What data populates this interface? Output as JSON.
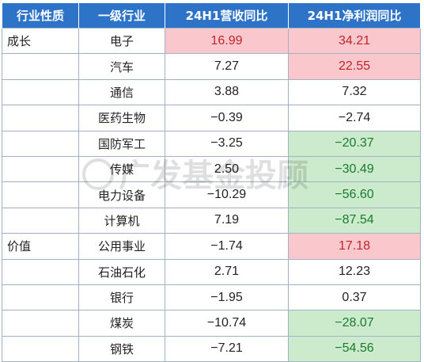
{
  "table": {
    "headers": [
      "行业性质",
      "一级行业",
      "24H1营收同比",
      "24H1净利润同比"
    ],
    "rows": [
      {
        "type": "成长",
        "industry": "电子",
        "revenue": "16.99",
        "profit": "34.21",
        "rev_hl": "pos",
        "prof_hl": "pos"
      },
      {
        "type": "",
        "industry": "汽车",
        "revenue": "7.27",
        "profit": "22.55",
        "rev_hl": "",
        "prof_hl": "pos"
      },
      {
        "type": "",
        "industry": "通信",
        "revenue": "3.88",
        "profit": "7.32",
        "rev_hl": "",
        "prof_hl": ""
      },
      {
        "type": "",
        "industry": "医药生物",
        "revenue": "−0.39",
        "profit": "−2.74",
        "rev_hl": "",
        "prof_hl": ""
      },
      {
        "type": "",
        "industry": "国防军工",
        "revenue": "−3.25",
        "profit": "−20.37",
        "rev_hl": "",
        "prof_hl": "neg"
      },
      {
        "type": "",
        "industry": "传媒",
        "revenue": "2.50",
        "profit": "−30.49",
        "rev_hl": "",
        "prof_hl": "neg"
      },
      {
        "type": "",
        "industry": "电力设备",
        "revenue": "−10.29",
        "profit": "−56.60",
        "rev_hl": "",
        "prof_hl": "neg"
      },
      {
        "type": "",
        "industry": "计算机",
        "revenue": "7.19",
        "profit": "−87.54",
        "rev_hl": "",
        "prof_hl": "neg"
      },
      {
        "type": "价值",
        "industry": "公用事业",
        "revenue": "−1.74",
        "profit": "17.18",
        "rev_hl": "",
        "prof_hl": "pos"
      },
      {
        "type": "",
        "industry": "石油石化",
        "revenue": "2.71",
        "profit": "12.23",
        "rev_hl": "",
        "prof_hl": ""
      },
      {
        "type": "",
        "industry": "银行",
        "revenue": "−1.95",
        "profit": "0.37",
        "rev_hl": "",
        "prof_hl": ""
      },
      {
        "type": "",
        "industry": "煤炭",
        "revenue": "−10.74",
        "profit": "−28.07",
        "rev_hl": "",
        "prof_hl": "neg"
      },
      {
        "type": "",
        "industry": "钢铁",
        "revenue": "−7.21",
        "profit": "−54.56",
        "rev_hl": "",
        "prof_hl": "neg"
      }
    ]
  },
  "watermark": {
    "text": "广发基金投顾"
  },
  "colors": {
    "header_bg": "#2d73c8",
    "positive_bg": "#fac8cc",
    "positive_text": "#c0242c",
    "negative_bg": "#ccebcc",
    "negative_text": "#1a7a30"
  }
}
